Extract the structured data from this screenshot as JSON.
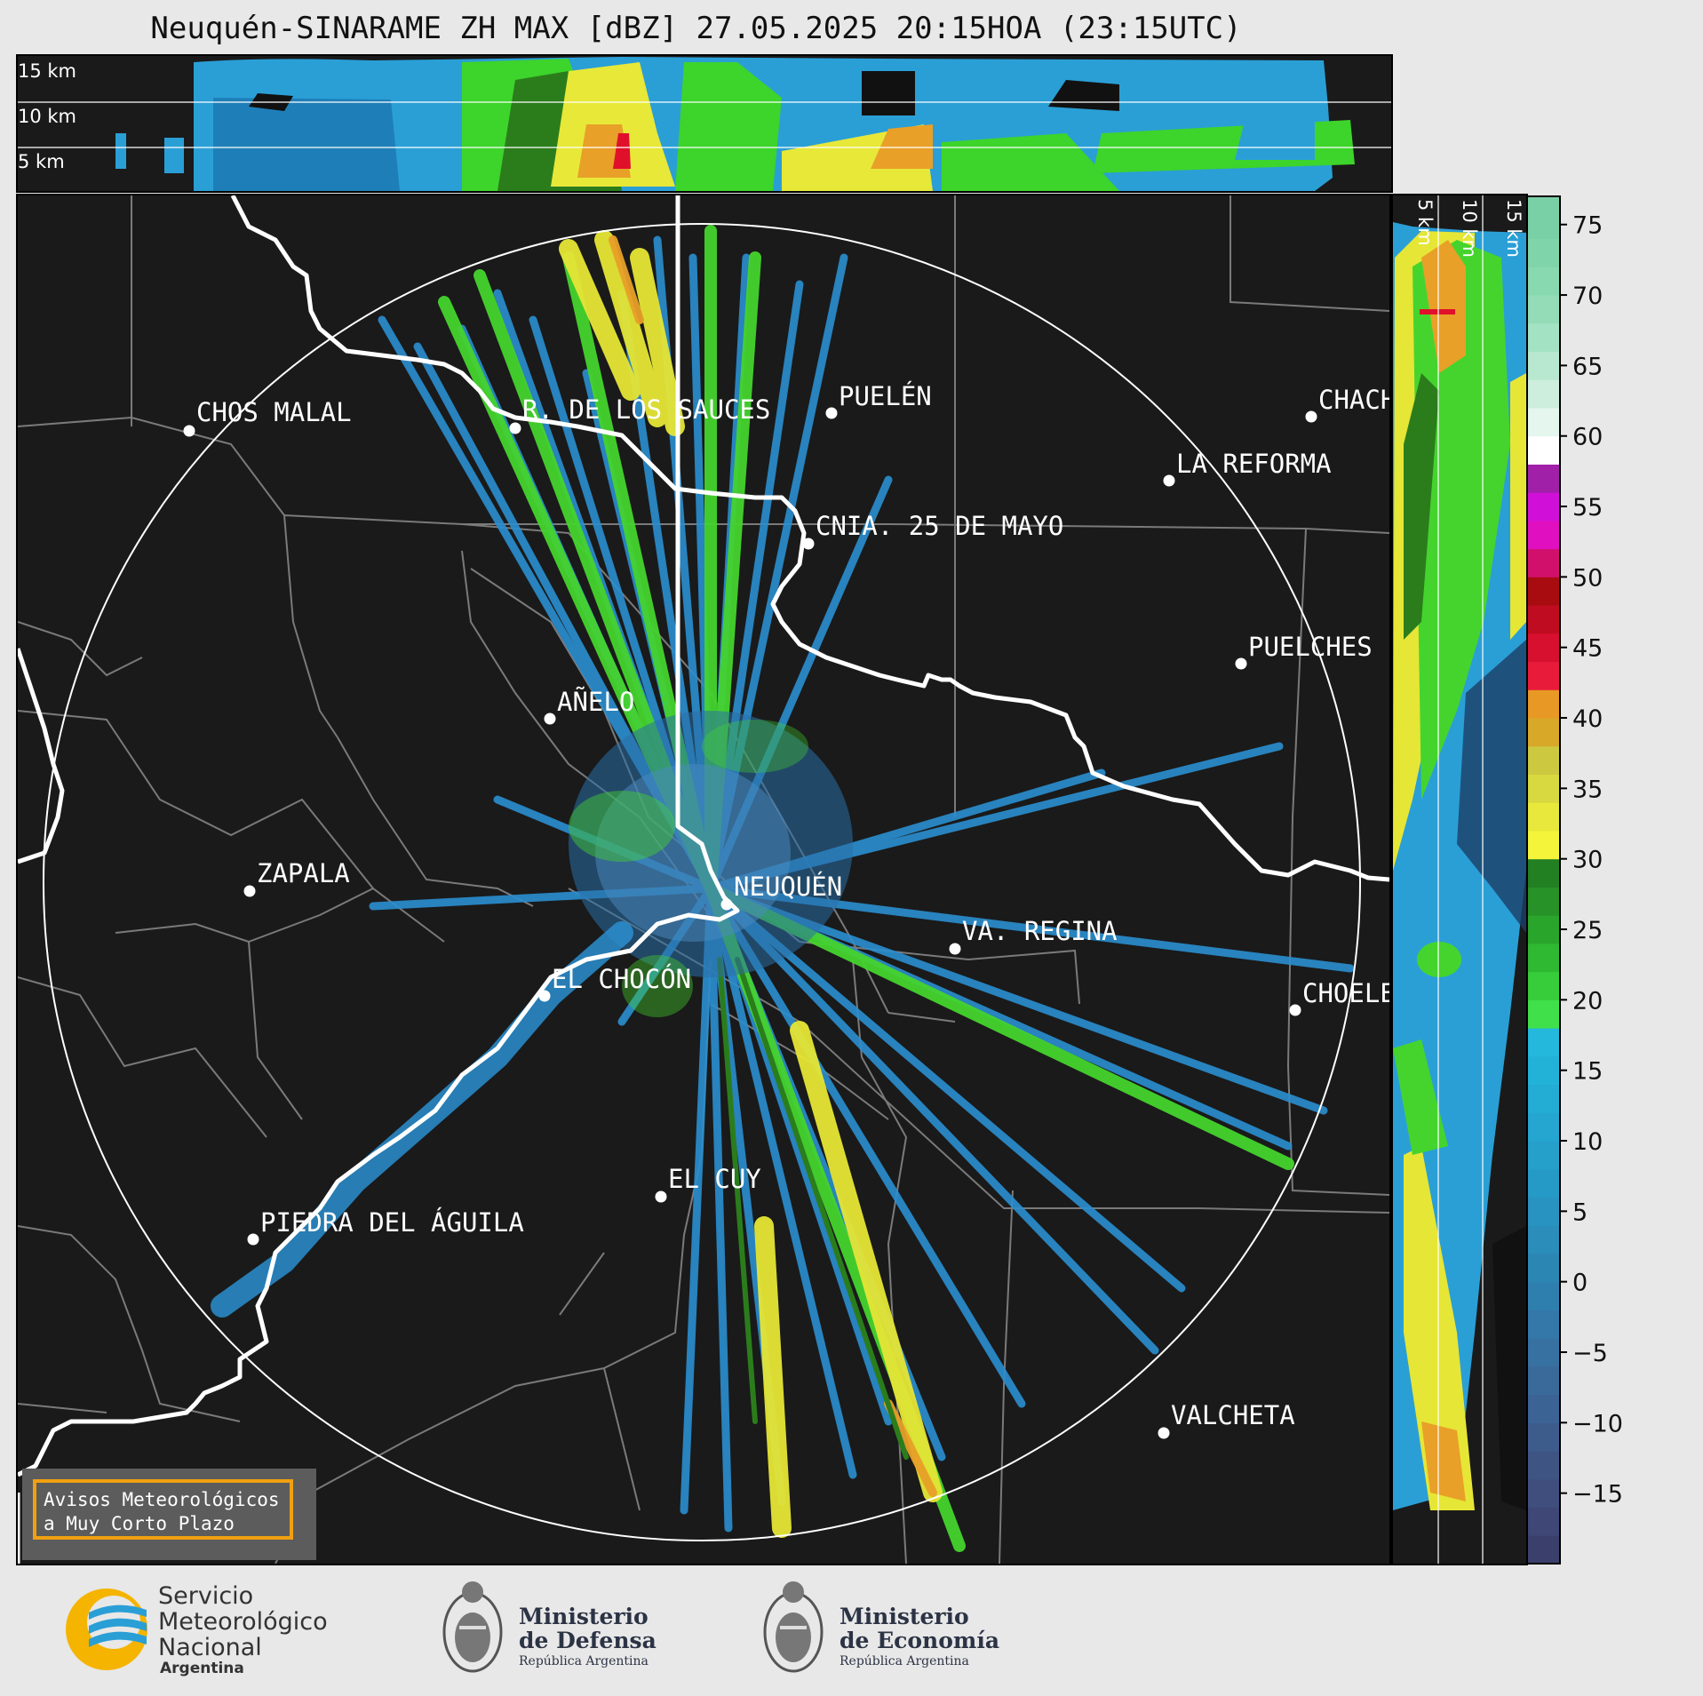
{
  "title": "Neuquén-SINARAME ZH MAX [dBZ] 27.05.2025 20:15HOA (23:15UTC)",
  "top_profile": {
    "height_labels": [
      "15 km",
      "10 km",
      "5 km"
    ]
  },
  "side_profile": {
    "height_labels": [
      "5 km",
      "10 km",
      "15 km"
    ]
  },
  "colorbar": {
    "unit": "dBZ",
    "ticks": [
      "75",
      "70",
      "65",
      "60",
      "55",
      "50",
      "45",
      "40",
      "35",
      "30",
      "25",
      "20",
      "15",
      "10",
      "5",
      "0",
      "−5",
      "−10",
      "−15"
    ],
    "range": [
      -20,
      77
    ]
  },
  "cities": [
    {
      "name": "CHOS MALAL"
    },
    {
      "name": "R. DE LOS SAUCES"
    },
    {
      "name": "PUELÉN"
    },
    {
      "name": "CHACH"
    },
    {
      "name": "LA REFORMA"
    },
    {
      "name": "CNIA. 25 DE MAYO"
    },
    {
      "name": "PUELCHES"
    },
    {
      "name": "AÑELO"
    },
    {
      "name": "ZAPALA"
    },
    {
      "name": "NEUQUÉN"
    },
    {
      "name": "VA. REGINA"
    },
    {
      "name": "EL CHOCÓN"
    },
    {
      "name": "CHOELE"
    },
    {
      "name": "EL CUY"
    },
    {
      "name": "PIEDRA DEL ÁGUILA"
    },
    {
      "name": "VALCHETA"
    }
  ],
  "warning": {
    "line1": "Avisos Meteorológicos",
    "line2": "a Muy Corto Plazo"
  },
  "logos": {
    "smn": {
      "line1": "Servicio",
      "line2": "Meteorológico",
      "line3": "Nacional",
      "line4": "Argentina"
    },
    "defensa": {
      "line1": "Ministerio",
      "line2": "de Defensa",
      "line3": "República Argentina"
    },
    "economia": {
      "line1": "Ministerio",
      "line2": "de Economía",
      "line3": "República Argentina"
    }
  },
  "colors": {
    "background": "#1a1a1a",
    "border_white": "#ffffff",
    "province_lines": "#808080",
    "warning_border": "#f0a010"
  }
}
